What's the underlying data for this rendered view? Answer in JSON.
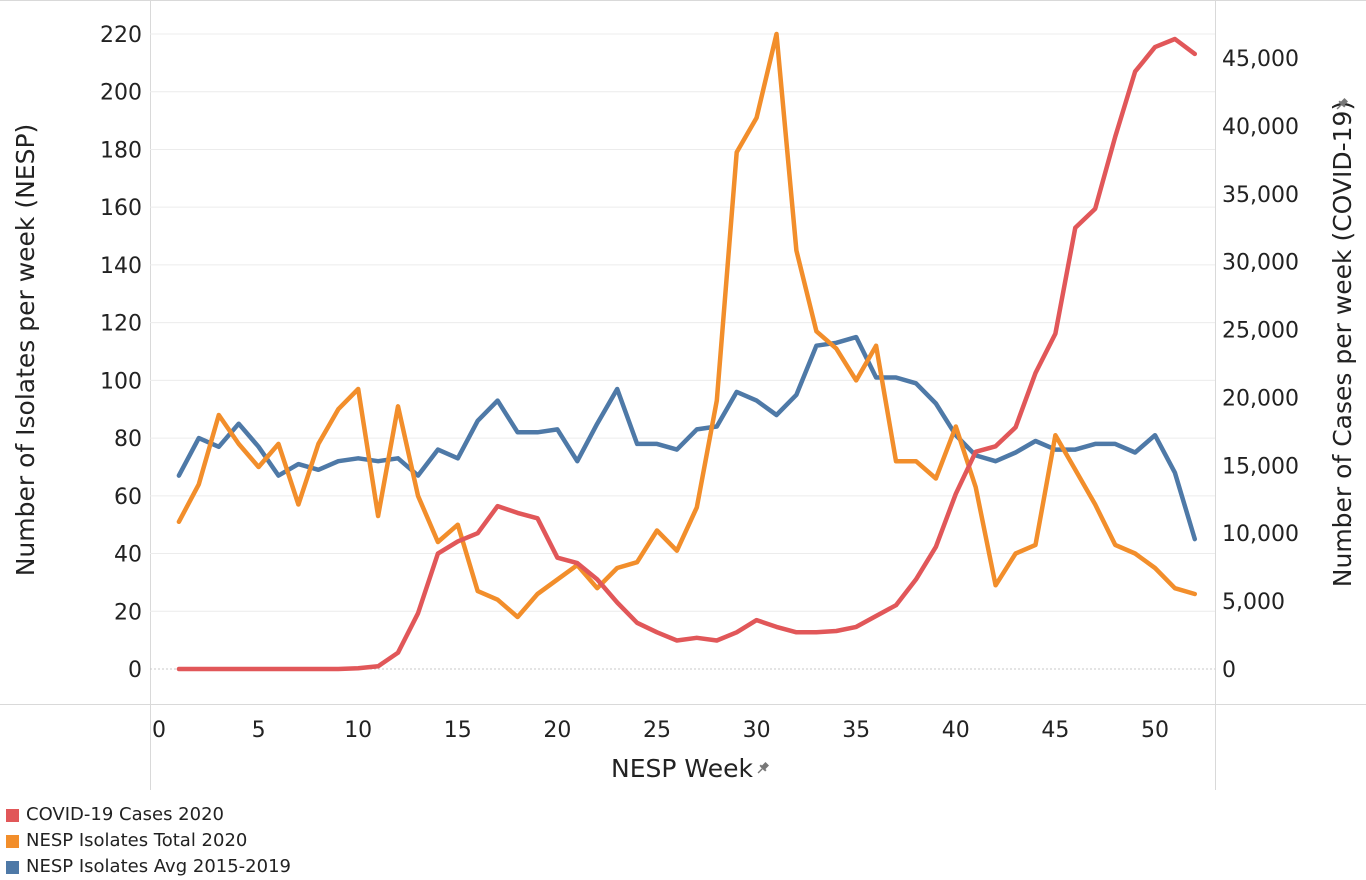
{
  "chart_data": {
    "type": "line",
    "title": "",
    "xlabel": "NESP Week",
    "ylabel_left": "Number of Isolates per week (NESP)",
    "ylabel_right": "Number of Cases per week (COVID-19)",
    "x": [
      1,
      2,
      3,
      4,
      5,
      6,
      7,
      8,
      9,
      10,
      11,
      12,
      13,
      14,
      15,
      16,
      17,
      18,
      19,
      20,
      21,
      22,
      23,
      24,
      25,
      26,
      27,
      28,
      29,
      30,
      31,
      32,
      33,
      34,
      35,
      36,
      37,
      38,
      39,
      40,
      41,
      42,
      43,
      44,
      45,
      46,
      47,
      48,
      49,
      50,
      51,
      52
    ],
    "xlim": [
      0,
      53
    ],
    "xticks": [
      0,
      5,
      10,
      15,
      20,
      25,
      30,
      35,
      40,
      45,
      50
    ],
    "xtick_labels": [
      "0",
      "5",
      "10",
      "15",
      "20",
      "25",
      "30",
      "35",
      "40",
      "45",
      "50"
    ],
    "ylim_left": [
      0,
      220
    ],
    "yticks_left": [
      0,
      20,
      40,
      60,
      80,
      100,
      120,
      140,
      160,
      180,
      200,
      220
    ],
    "ytick_labels_left": [
      "0",
      "20",
      "40",
      "60",
      "80",
      "100",
      "120",
      "140",
      "160",
      "180",
      "200",
      "220"
    ],
    "ylim_right": [
      0,
      46500
    ],
    "yticks_right": [
      0,
      5000,
      10000,
      15000,
      20000,
      25000,
      30000,
      35000,
      40000,
      45000
    ],
    "ytick_labels_right": [
      "0",
      "5,000",
      "10,000",
      "15,000",
      "20,000",
      "25,000",
      "30,000",
      "35,000",
      "40,000",
      "45,000"
    ],
    "grid": true,
    "legend_position": "bottom-left",
    "series": [
      {
        "name": "COVID-19 Cases 2020",
        "axis": "right",
        "color": "#e15759",
        "values": [
          0,
          0,
          0,
          0,
          0,
          0,
          0,
          0,
          0,
          50,
          200,
          1200,
          4100,
          8500,
          9400,
          10000,
          12000,
          11500,
          11100,
          8200,
          7800,
          6600,
          4900,
          3400,
          2700,
          2100,
          2300,
          2100,
          2700,
          3600,
          3100,
          2700,
          2700,
          2800,
          3100,
          3900,
          4700,
          6600,
          9000,
          12900,
          16000,
          16400,
          17800,
          21800,
          24700,
          32500,
          33900,
          39200,
          44000,
          45800,
          46400,
          45300
        ]
      },
      {
        "name": "NESP Isolates Total 2020",
        "axis": "left",
        "color": "#f28e2b",
        "values": [
          51,
          64,
          88,
          78,
          70,
          78,
          57,
          78,
          90,
          97,
          53,
          91,
          60,
          44,
          50,
          27,
          24,
          18,
          26,
          31,
          36,
          28,
          35,
          37,
          48,
          41,
          56,
          93,
          179,
          191,
          220,
          145,
          117,
          111,
          100,
          112,
          72,
          72,
          66,
          84,
          63,
          29,
          40,
          43,
          81,
          69,
          57,
          43,
          40,
          35,
          28,
          26
        ]
      },
      {
        "name": "NESP Isolates Avg 2015-2019",
        "axis": "left",
        "color": "#4e79a7",
        "values": [
          67,
          80,
          77,
          85,
          77,
          67,
          71,
          69,
          72,
          73,
          72,
          73,
          67,
          76,
          73,
          86,
          93,
          82,
          82,
          83,
          72,
          85,
          97,
          78,
          78,
          76,
          83,
          84,
          96,
          93,
          88,
          95,
          112,
          113,
          115,
          101,
          101,
          99,
          92,
          81,
          74,
          72,
          75,
          79,
          76,
          76,
          78,
          78,
          75,
          81,
          68,
          45
        ]
      }
    ]
  }
}
